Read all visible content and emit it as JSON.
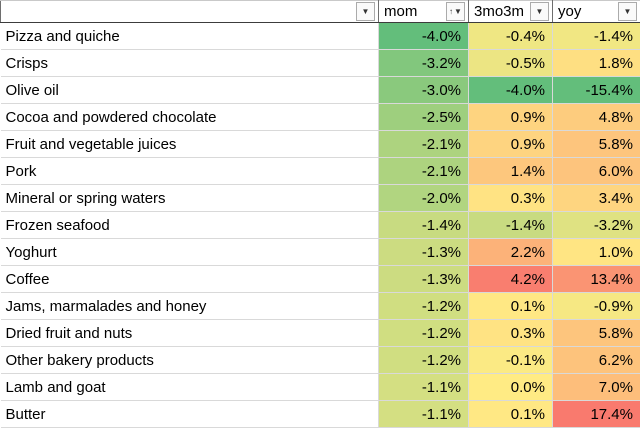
{
  "table": {
    "columns": [
      {
        "key": "category",
        "header": "",
        "filter": true
      },
      {
        "key": "mom",
        "header": "mom",
        "filter": true,
        "sorted": "asc"
      },
      {
        "key": "m3",
        "header": "3mo3m",
        "filter": true
      },
      {
        "key": "yoy",
        "header": "yoy",
        "filter": true
      }
    ],
    "icons": {
      "filter_dropdown": "▼",
      "sort_ascending": "↑"
    },
    "color_scale": {
      "green": "#63BE7B",
      "yellow": "#FFEB84",
      "red": "#F8696B"
    },
    "domains": {
      "mom": {
        "min": -4.0,
        "mid": 0,
        "max": 4.0
      },
      "m3": {
        "min": -4.0,
        "mid": 0,
        "max": 5.0
      },
      "yoy": {
        "min": -15.4,
        "mid": 0,
        "max": 20.0
      }
    },
    "value_format": {
      "decimals": 1,
      "suffix": "%"
    },
    "rows": [
      {
        "category": "Pizza and quiche",
        "mom": -4.0,
        "m3": -0.4,
        "yoy": -1.4
      },
      {
        "category": "Crisps",
        "mom": -3.2,
        "m3": -0.5,
        "yoy": 1.8
      },
      {
        "category": "Olive oil",
        "mom": -3.0,
        "m3": -4.0,
        "yoy": -15.4
      },
      {
        "category": "Cocoa and powdered chocolate",
        "mom": -2.5,
        "m3": 0.9,
        "yoy": 4.8
      },
      {
        "category": "Fruit and vegetable juices",
        "mom": -2.1,
        "m3": 0.9,
        "yoy": 5.8
      },
      {
        "category": "Pork",
        "mom": -2.1,
        "m3": 1.4,
        "yoy": 6.0
      },
      {
        "category": "Mineral or spring waters",
        "mom": -2.0,
        "m3": 0.3,
        "yoy": 3.4
      },
      {
        "category": "Frozen seafood",
        "mom": -1.4,
        "m3": -1.4,
        "yoy": -3.2
      },
      {
        "category": "Yoghurt",
        "mom": -1.3,
        "m3": 2.2,
        "yoy": 1.0
      },
      {
        "category": "Coffee",
        "mom": -1.3,
        "m3": 4.2,
        "yoy": 13.4
      },
      {
        "category": "Jams, marmalades and honey",
        "mom": -1.2,
        "m3": 0.1,
        "yoy": -0.9
      },
      {
        "category": "Dried fruit and nuts",
        "mom": -1.2,
        "m3": 0.3,
        "yoy": 5.8
      },
      {
        "category": "Other bakery products",
        "mom": -1.2,
        "m3": -0.1,
        "yoy": 6.2
      },
      {
        "category": "Lamb and goat",
        "mom": -1.1,
        "m3": 0.0,
        "yoy": 7.0
      },
      {
        "category": "Butter",
        "mom": -1.1,
        "m3": 0.1,
        "yoy": 17.4
      }
    ]
  }
}
